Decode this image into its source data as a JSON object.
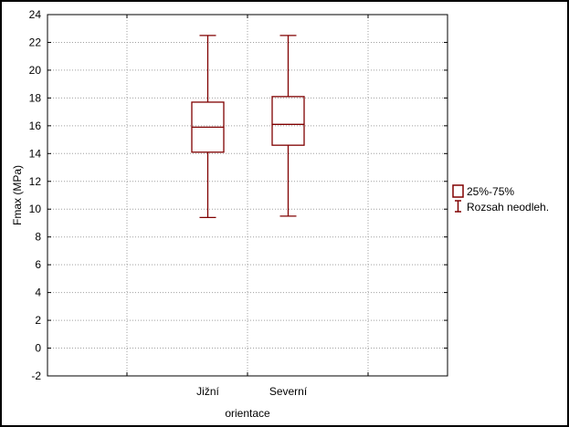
{
  "chart_data": {
    "type": "box",
    "xlabel": "orientace",
    "ylabel": "Fmax (MPa)",
    "ylim": [
      -2,
      24
    ],
    "yticks": [
      -2,
      0,
      2,
      4,
      6,
      8,
      10,
      12,
      14,
      16,
      18,
      20,
      22,
      24
    ],
    "grid": true,
    "legend_position": "right",
    "categories": [
      "Jižní",
      "Severní"
    ],
    "boxes": [
      {
        "category": "Jižní",
        "whisker_low": 9.4,
        "q1": 14.1,
        "median": 15.9,
        "q3": 17.7,
        "whisker_high": 22.5
      },
      {
        "category": "Severní",
        "whisker_low": 9.5,
        "q1": 14.6,
        "median": 16.1,
        "q3": 18.1,
        "whisker_high": 22.5
      }
    ],
    "legend": [
      {
        "symbol": "box",
        "label": "25%-75%"
      },
      {
        "symbol": "whisker",
        "label": "Rozsah neodleh."
      }
    ],
    "color": "#800000"
  }
}
